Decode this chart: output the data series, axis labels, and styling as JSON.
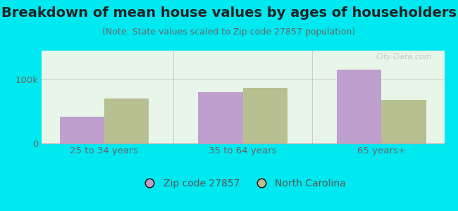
{
  "title": "Breakdown of mean house values by ages of householders",
  "subtitle": "(Note: State values scaled to Zip code 27857 population)",
  "categories": [
    "25 to 34 years",
    "35 to 64 years",
    "65 years+"
  ],
  "zip_values": [
    42000,
    80000,
    115000
  ],
  "state_values": [
    70000,
    87000,
    68000
  ],
  "zip_color": "#bf9fce",
  "state_color": "#b8bf90",
  "background_outer": "#00e8f0",
  "ylim": [
    0,
    145000
  ],
  "yticks": [
    0,
    100000
  ],
  "ytick_labels": [
    "0",
    "100k"
  ],
  "zip_label": "Zip code 27857",
  "state_label": "North Carolina",
  "bar_width": 0.32,
  "title_fontsize": 14,
  "subtitle_fontsize": 9,
  "tick_fontsize": 9.5,
  "legend_fontsize": 10
}
